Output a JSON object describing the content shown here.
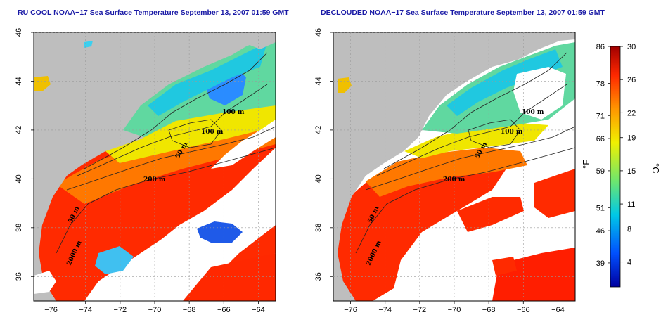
{
  "panels": [
    {
      "title": "RU COOL NOAA−17 Sea Surface Temperature September 13, 2007 01:59 GMT",
      "contour_labels": [
        "100 m",
        "100 m",
        "50 m",
        "200 m",
        "50 m",
        "2000 m"
      ],
      "cloud_cover": "clouds shown"
    },
    {
      "title": "DECLOUDED NOAA−17 Sea Surface Temperature September 13, 2007 01:59 GMT",
      "contour_labels": [
        "100 m",
        "100 m",
        "50 m",
        "200 m",
        "50 m",
        "2000 m"
      ],
      "cloud_cover": "declouded"
    }
  ],
  "axes": {
    "lon_ticks": [
      "−76",
      "−74",
      "−72",
      "−70",
      "−68",
      "−66",
      "−64"
    ],
    "lat_ticks": [
      "36",
      "38",
      "40",
      "42",
      "44",
      "46"
    ],
    "lon_range": [
      -77,
      -63
    ],
    "lat_range": [
      35,
      46
    ]
  },
  "colorbar": {
    "fahrenheit_label": "°F",
    "celsius_label": "°C",
    "fahrenheit_ticks": [
      "86",
      "78",
      "71",
      "66",
      "59",
      "51",
      "46",
      "39"
    ],
    "celsius_ticks": [
      "30",
      "26",
      "22",
      "19",
      "15",
      "11",
      "8",
      "4"
    ],
    "range_c": [
      1,
      30
    ],
    "colors": [
      "#0000a0",
      "#0050ff",
      "#00c8e6",
      "#6ee66e",
      "#f0f000",
      "#ff9600",
      "#ff2800",
      "#a00000"
    ]
  },
  "colors": {
    "land": "#bebebe",
    "cloud": "#ffffff",
    "title": "#1a1aa6"
  }
}
